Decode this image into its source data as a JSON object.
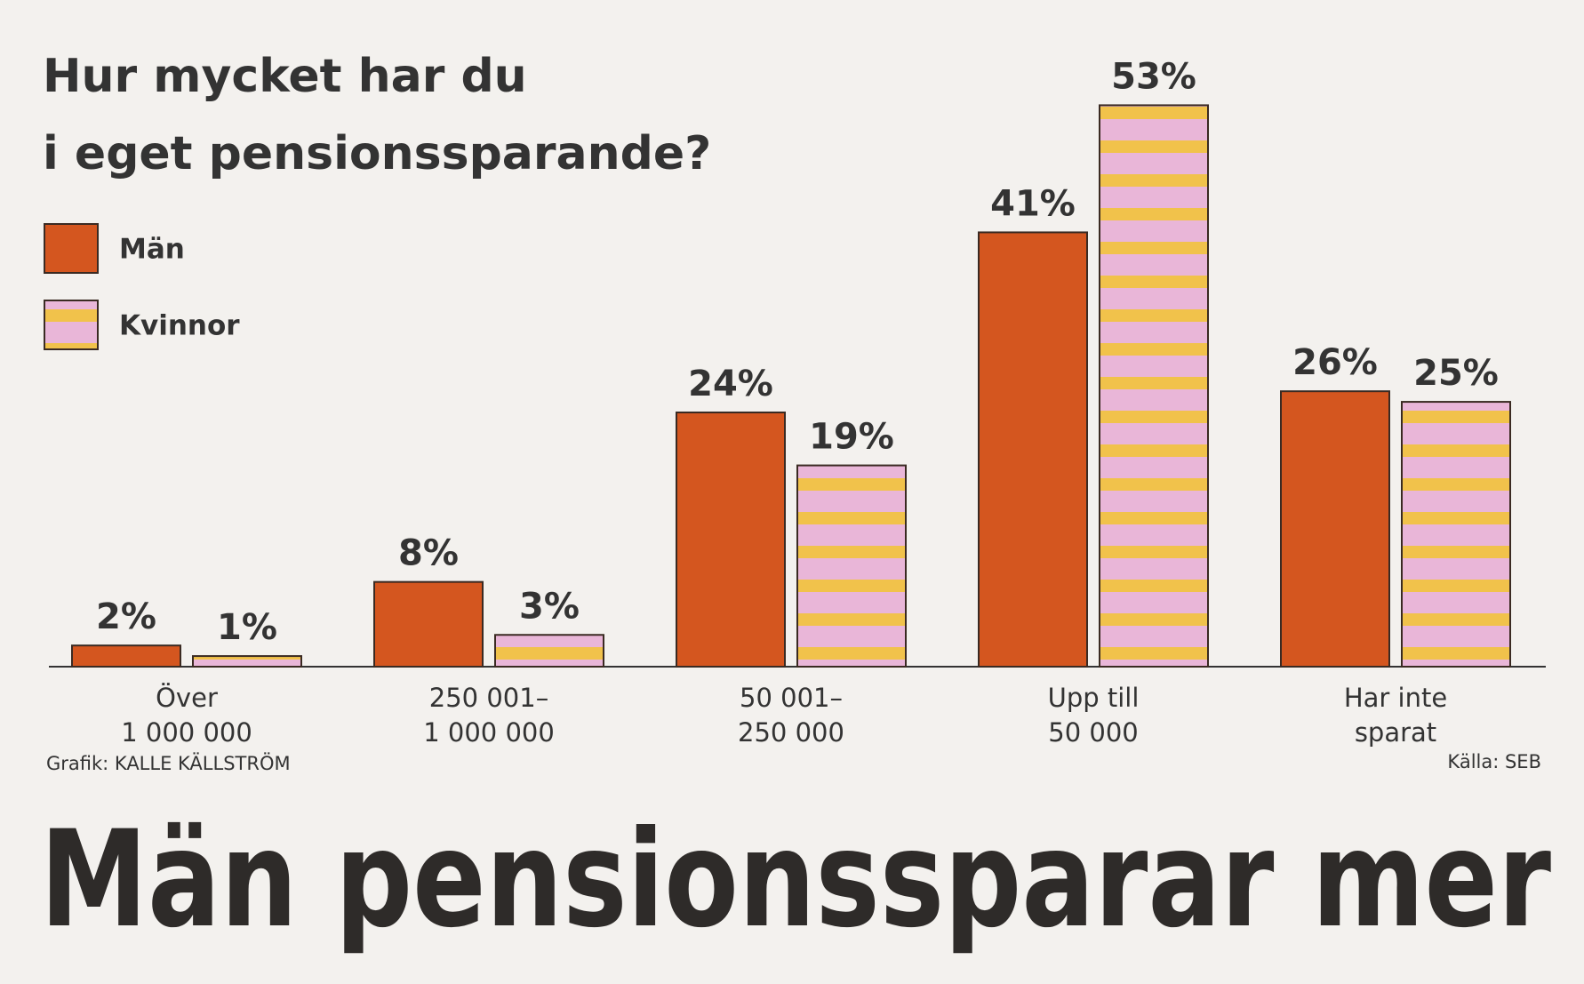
{
  "chart_data": {
    "type": "bar",
    "title": [
      "Hur mycket har du",
      "i eget pensionssparande?"
    ],
    "headline": "Män pensionssparar mer",
    "credit": "Grafik: KALLE KÄLLSTRÖM",
    "source": "Källa: SEB",
    "categories": [
      [
        "Över",
        "1 000 000"
      ],
      [
        "250 001–",
        "1 000 000"
      ],
      [
        "50 001–",
        "250 000"
      ],
      [
        "Upp till",
        "50 000"
      ],
      [
        "Har inte",
        "sparat"
      ]
    ],
    "series": [
      {
        "name": "Män",
        "color": "#d4561f",
        "values": [
          2,
          8,
          24,
          41,
          26
        ],
        "value_labels": [
          "2%",
          "8%",
          "24%",
          "41%",
          "26%"
        ]
      },
      {
        "name": "Kvinnor",
        "color": "#f2c43c",
        "values": [
          1,
          3,
          19,
          53,
          25
        ],
        "value_labels": [
          "1%",
          "3%",
          "19%",
          "53%",
          "25%"
        ]
      }
    ],
    "ylim": [
      0,
      60
    ]
  }
}
